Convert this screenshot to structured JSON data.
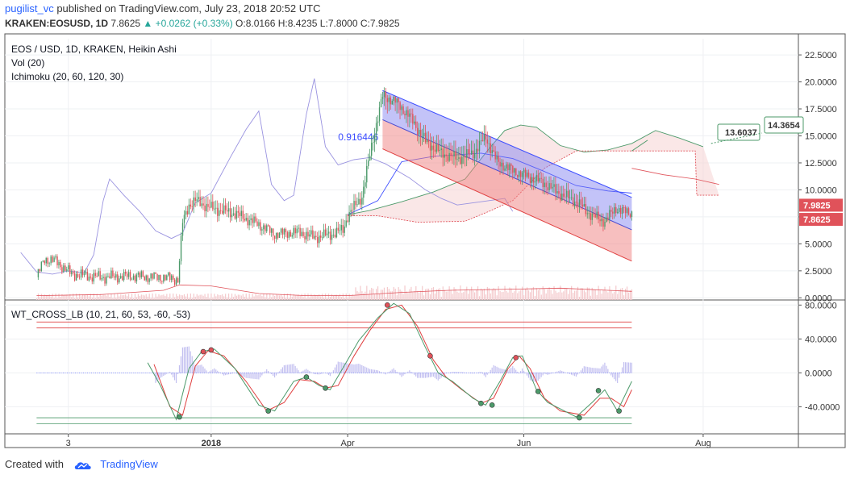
{
  "header": {
    "author": "pugilist_vc",
    "published_text": "published on TradingView.com, July 23, 2018 20:52 UTC",
    "symbol": "KRAKEN:EOSUSD, 1D",
    "last": "7.8625",
    "change": "▲ +0.0262 (+0.33%)",
    "o_label": "O:",
    "o": "8.0166",
    "h_label": "H:",
    "h": "8.4235",
    "l_label": "L:",
    "l": "7.8000",
    "c_label": "C:",
    "c": "7.9825"
  },
  "footer": {
    "created_with": "Created with",
    "brand": "TradingView"
  },
  "colors": {
    "up": "#4c9a6a",
    "down": "#e0525a",
    "channel_upper": "#7b7bf0",
    "channel_lower": "#f08080",
    "grid": "#eef0f3",
    "axis": "#555555",
    "volume": "#f4c9cc",
    "blue_line": "#3b4cff"
  },
  "chart_data": [
    {
      "type": "candlestick",
      "legend": [
        "EOS / USD, 1D, KRAKEN, Heikin Ashi",
        "Vol (20)",
        "Ichimoku (20, 60, 120, 30)"
      ],
      "y_ticks": [
        "22.5000",
        "20.0000",
        "17.5000",
        "15.0000",
        "12.5000",
        "10.0000",
        "7.5000",
        "5.0000",
        "2.5000",
        "0.0000"
      ],
      "y_tick_values": [
        22.5,
        20,
        17.5,
        15,
        12.5,
        10,
        7.5,
        5,
        2.5,
        0
      ],
      "ylim": [
        -0.2,
        24.0
      ],
      "x_ticks": [
        "3",
        "2018",
        "Apr",
        "Jun",
        "Aug"
      ],
      "x_tick_index": [
        20,
        110,
        196,
        307,
        420
      ],
      "x_range": [
        -20,
        480
      ],
      "price_labels": [
        {
          "label": "7.9825",
          "value": 7.9825
        },
        {
          "label": "7.8625",
          "value": 7.8625
        }
      ],
      "callouts": [
        {
          "label": "13.6037",
          "value": 13.6
        },
        {
          "label": "14.3654",
          "value": 14.37
        }
      ],
      "channel_label": "0.916446",
      "price_series_anchors": [
        [
          0,
          1.9
        ],
        [
          5,
          3.6
        ],
        [
          12,
          3.4
        ],
        [
          22,
          2.2
        ],
        [
          40,
          1.9
        ],
        [
          60,
          2.0
        ],
        [
          80,
          1.9
        ],
        [
          89,
          1.7
        ],
        [
          92,
          7.0
        ],
        [
          96,
          8.6
        ],
        [
          100,
          9.0
        ],
        [
          110,
          8.3
        ],
        [
          125,
          7.8
        ],
        [
          140,
          6.8
        ],
        [
          150,
          5.9
        ],
        [
          165,
          6.1
        ],
        [
          175,
          5.6
        ],
        [
          186,
          5.9
        ],
        [
          193,
          6.3
        ],
        [
          196,
          7.6
        ],
        [
          205,
          9.4
        ],
        [
          212,
          14.8
        ],
        [
          218,
          18.7
        ],
        [
          226,
          18.2
        ],
        [
          235,
          16.8
        ],
        [
          245,
          14.5
        ],
        [
          255,
          13.4
        ],
        [
          265,
          12.9
        ],
        [
          275,
          13.4
        ],
        [
          283,
          14.9
        ],
        [
          290,
          12.6
        ],
        [
          300,
          11.8
        ],
        [
          310,
          11.2
        ],
        [
          320,
          10.6
        ],
        [
          330,
          9.6
        ],
        [
          340,
          8.9
        ],
        [
          350,
          7.6
        ],
        [
          358,
          7.1
        ],
        [
          365,
          8.3
        ],
        [
          372,
          7.9
        ]
      ],
      "channel": {
        "upper": [
          [
            218,
            19.2
          ],
          [
            375,
            9.3
          ]
        ],
        "middle": [
          [
            218,
            16.5
          ],
          [
            375,
            6.3
          ]
        ],
        "lower": [
          [
            218,
            13.8
          ],
          [
            375,
            3.4
          ]
        ]
      },
      "ichimoku_lagging": [
        [
          -10,
          4.2
        ],
        [
          0,
          2.4
        ],
        [
          10,
          2.2
        ],
        [
          20,
          2.5
        ],
        [
          30,
          2.3
        ],
        [
          36,
          4.0
        ],
        [
          42,
          9.0
        ],
        [
          46,
          11.0
        ],
        [
          55,
          9.5
        ],
        [
          65,
          8.0
        ],
        [
          75,
          6.2
        ],
        [
          85,
          5.5
        ],
        [
          92,
          6.0
        ],
        [
          100,
          8.8
        ],
        [
          110,
          9.7
        ],
        [
          122,
          13.0
        ],
        [
          132,
          15.6
        ],
        [
          140,
          17.3
        ],
        [
          148,
          10.5
        ],
        [
          156,
          9.0
        ],
        [
          162,
          9.5
        ],
        [
          170,
          17.0
        ],
        [
          175,
          20.3
        ],
        [
          182,
          14.0
        ],
        [
          190,
          12.3
        ],
        [
          200,
          12.8
        ],
        [
          210,
          13.0
        ],
        [
          220,
          12.4
        ],
        [
          235,
          11.1
        ],
        [
          245,
          10.0
        ],
        [
          255,
          9.2
        ],
        [
          265,
          8.6
        ],
        [
          280,
          8.9
        ],
        [
          295,
          9.2
        ],
        [
          300,
          8.0
        ]
      ],
      "ichimoku_span_a": [
        [
          196,
          7.7
        ],
        [
          210,
          8.1
        ],
        [
          230,
          8.9
        ],
        [
          250,
          9.8
        ],
        [
          270,
          11.0
        ],
        [
          285,
          13.8
        ],
        [
          295,
          15.5
        ],
        [
          305,
          16.0
        ],
        [
          315,
          15.8
        ],
        [
          330,
          14.1
        ],
        [
          345,
          13.5
        ],
        [
          360,
          13.7
        ],
        [
          375,
          14.3
        ],
        [
          390,
          15.5
        ],
        [
          405,
          14.8
        ],
        [
          420,
          14.0
        ]
      ],
      "ichimoku_span_b": [
        [
          196,
          7.6
        ],
        [
          215,
          7.6
        ],
        [
          240,
          7.0
        ],
        [
          270,
          7.1
        ],
        [
          285,
          8.0
        ],
        [
          300,
          9.0
        ],
        [
          320,
          12.0
        ],
        [
          340,
          13.6
        ],
        [
          370,
          13.6
        ],
        [
          390,
          13.6
        ],
        [
          405,
          13.6
        ],
        [
          415,
          13.6
        ],
        [
          416,
          9.5
        ],
        [
          430,
          9.5
        ]
      ],
      "ichimoku_base": [
        [
          196,
          7.7
        ],
        [
          215,
          9.0
        ],
        [
          230,
          12.6
        ],
        [
          250,
          13.1
        ],
        [
          280,
          13.4
        ],
        [
          300,
          12.9
        ],
        [
          320,
          11.7
        ],
        [
          340,
          10.4
        ],
        [
          360,
          9.9
        ],
        [
          375,
          9.7
        ]
      ],
      "ichimoku_future_line": [
        [
          375,
          12.0
        ],
        [
          395,
          11.4
        ],
        [
          415,
          11.0
        ],
        [
          430,
          10.5
        ]
      ],
      "volume_avg": [
        [
          0,
          0.2
        ],
        [
          40,
          0.3
        ],
        [
          80,
          0.7
        ],
        [
          90,
          1.2
        ],
        [
          110,
          1.1
        ],
        [
          140,
          0.4
        ],
        [
          170,
          0.2
        ],
        [
          196,
          0.2
        ],
        [
          230,
          0.5
        ],
        [
          260,
          0.7
        ],
        [
          300,
          0.8
        ],
        [
          330,
          0.9
        ],
        [
          360,
          0.7
        ],
        [
          375,
          0.6
        ]
      ]
    },
    {
      "type": "line",
      "legend": [
        "WT_CROSS_LB (10, 21, 60, 53, -60, -53)"
      ],
      "y_ticks": [
        "80.0000",
        "40.0000",
        "0.0000",
        "-40.0000"
      ],
      "y_tick_values": [
        80,
        40,
        0,
        -40
      ],
      "ylim": [
        -72,
        86
      ],
      "levels": [
        60,
        53,
        -53,
        -60
      ],
      "wt1_anchors": [
        [
          70,
          12
        ],
        [
          78,
          -15
        ],
        [
          88,
          -55
        ],
        [
          96,
          5
        ],
        [
          104,
          25
        ],
        [
          112,
          28
        ],
        [
          125,
          5
        ],
        [
          140,
          -38
        ],
        [
          150,
          -45
        ],
        [
          162,
          -10
        ],
        [
          170,
          -5
        ],
        [
          178,
          -15
        ],
        [
          185,
          -20
        ],
        [
          195,
          12
        ],
        [
          203,
          38
        ],
        [
          215,
          65
        ],
        [
          225,
          82
        ],
        [
          235,
          70
        ],
        [
          245,
          30
        ],
        [
          253,
          0
        ],
        [
          262,
          -10
        ],
        [
          275,
          -30
        ],
        [
          283,
          -38
        ],
        [
          292,
          -10
        ],
        [
          300,
          18
        ],
        [
          306,
          20
        ],
        [
          315,
          -20
        ],
        [
          322,
          -35
        ],
        [
          340,
          -52
        ],
        [
          350,
          -35
        ],
        [
          358,
          -20
        ],
        [
          366,
          -45
        ],
        [
          375,
          -10
        ]
      ],
      "wt2_anchors": [
        [
          74,
          10
        ],
        [
          84,
          -40
        ],
        [
          92,
          -50
        ],
        [
          100,
          8
        ],
        [
          108,
          26
        ],
        [
          118,
          20
        ],
        [
          132,
          -10
        ],
        [
          145,
          -45
        ],
        [
          156,
          -35
        ],
        [
          166,
          -8
        ],
        [
          175,
          -10
        ],
        [
          182,
          -18
        ],
        [
          190,
          -15
        ],
        [
          200,
          20
        ],
        [
          210,
          50
        ],
        [
          220,
          75
        ],
        [
          230,
          80
        ],
        [
          240,
          55
        ],
        [
          250,
          15
        ],
        [
          258,
          -5
        ],
        [
          268,
          -20
        ],
        [
          280,
          -36
        ],
        [
          288,
          -30
        ],
        [
          297,
          5
        ],
        [
          304,
          20
        ],
        [
          311,
          5
        ],
        [
          320,
          -30
        ],
        [
          330,
          -45
        ],
        [
          345,
          -50
        ],
        [
          355,
          -30
        ],
        [
          362,
          -30
        ],
        [
          370,
          -40
        ],
        [
          375,
          -20
        ]
      ],
      "cross_points": [
        [
          90,
          -52
        ],
        [
          105,
          25
        ],
        [
          110,
          27
        ],
        [
          146,
          -45
        ],
        [
          170,
          -5
        ],
        [
          182,
          -18
        ],
        [
          221,
          80
        ],
        [
          248,
          20
        ],
        [
          280,
          -36
        ],
        [
          287,
          -38
        ],
        [
          302,
          18
        ],
        [
          316,
          -22
        ],
        [
          342,
          -53
        ],
        [
          354,
          -21
        ],
        [
          367,
          -45
        ]
      ]
    }
  ]
}
